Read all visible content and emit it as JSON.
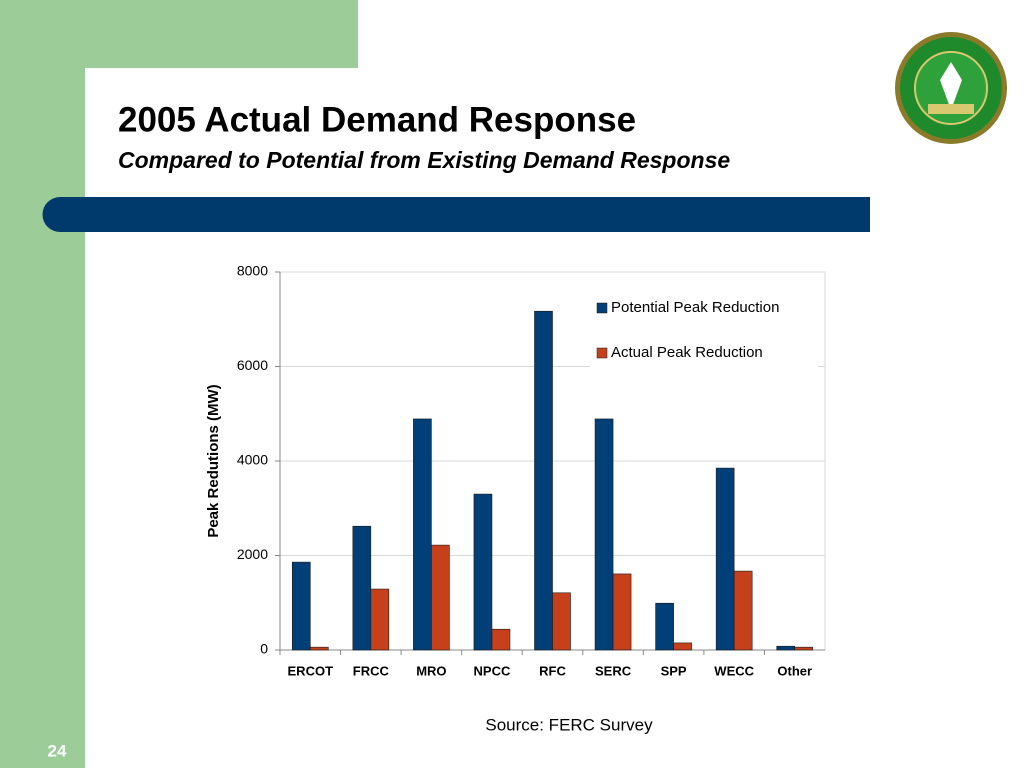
{
  "slide": {
    "number": "24"
  },
  "chart_data": {
    "type": "bar",
    "title": "2005 Actual Demand Response",
    "subtitle": "Compared to Potential from Existing Demand Response",
    "y_label": "Peak Redutions (MW)",
    "annotations": [
      "Source: FERC Survey"
    ],
    "categories": [
      "ERCOT",
      "FRCC",
      "MRO",
      "NPCC",
      "RFC",
      "SERC",
      "SPP",
      "WECC",
      "Other"
    ],
    "series": [
      {
        "name": "Potential Peak Reduction",
        "color": "#003f77",
        "values": [
          1860,
          2620,
          4890,
          3300,
          7170,
          4890,
          990,
          3850,
          80
        ]
      },
      {
        "name": "Actual Peak Reduction",
        "color": "#c6411b",
        "values": [
          60,
          1290,
          2220,
          440,
          1210,
          1610,
          150,
          1670,
          60
        ]
      }
    ],
    "ylim": [
      0,
      8000
    ],
    "yticks": [
      0,
      2000,
      4000,
      6000,
      8000
    ],
    "grid": true,
    "legend": "top-right"
  }
}
